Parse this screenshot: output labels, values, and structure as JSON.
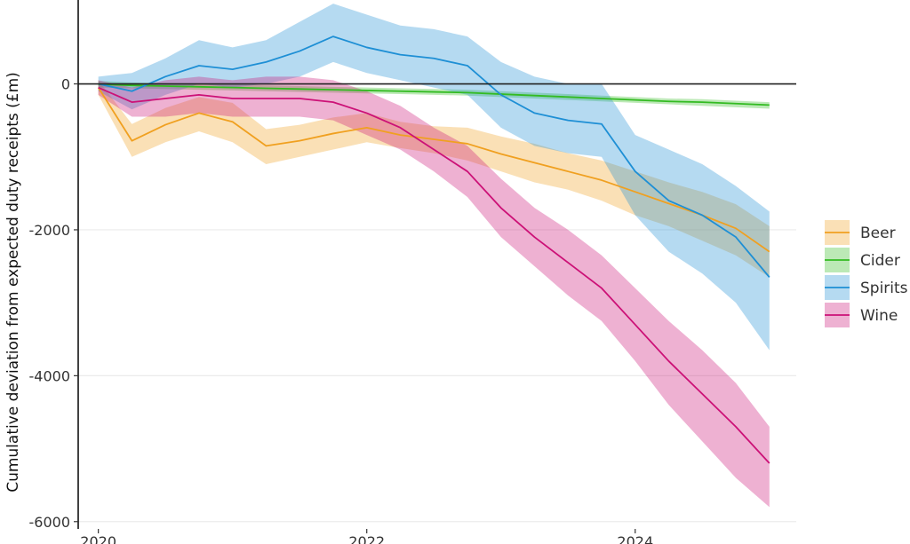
{
  "chart_data": {
    "type": "line",
    "title": "",
    "xlabel": "",
    "ylabel": "Cumulative deviation from expected duty receipts (£m)",
    "x_ticks": [
      "2020",
      "2022",
      "2024"
    ],
    "y_ticks": [
      "0",
      "-2000",
      "-4000",
      "-6000"
    ],
    "xlim": [
      2019.85,
      2025.2
    ],
    "ylim": [
      -6100,
      1150
    ],
    "grid": "horizontal",
    "legend_position": "right",
    "bands": "shaded confidence interval around each series",
    "x": [
      2020.0,
      2020.25,
      2020.5,
      2020.75,
      2021.0,
      2021.25,
      2021.5,
      2021.75,
      2022.0,
      2022.25,
      2022.5,
      2022.75,
      2023.0,
      2023.25,
      2023.5,
      2023.75,
      2024.0,
      2024.25,
      2024.5,
      2024.75,
      2025.0
    ],
    "series": [
      {
        "name": "Beer",
        "color": "#f0a020",
        "values": [
          -50,
          -780,
          -560,
          -400,
          -520,
          -850,
          -780,
          -680,
          -600,
          -700,
          -760,
          -820,
          -960,
          -1080,
          -1200,
          -1320,
          -1480,
          -1640,
          -1800,
          -1980,
          -2300
        ],
        "lower": [
          -150,
          -1000,
          -800,
          -650,
          -800,
          -1100,
          -1000,
          -900,
          -800,
          -880,
          -950,
          -1050,
          -1200,
          -1350,
          -1450,
          -1600,
          -1800,
          -1950,
          -2150,
          -2350,
          -2650
        ],
        "upper": [
          50,
          -550,
          -330,
          -180,
          -260,
          -620,
          -560,
          -460,
          -400,
          -520,
          -580,
          -600,
          -720,
          -820,
          -950,
          -1050,
          -1200,
          -1350,
          -1480,
          -1650,
          -1950
        ]
      },
      {
        "name": "Cider",
        "color": "#33bb22",
        "values": [
          -5,
          -20,
          -30,
          -40,
          -50,
          -60,
          -70,
          -80,
          -90,
          -100,
          -110,
          -120,
          -140,
          -160,
          -180,
          -200,
          -220,
          -240,
          -250,
          -270,
          -290
        ],
        "lower": [
          -50,
          -60,
          -70,
          -80,
          -90,
          -100,
          -110,
          -120,
          -130,
          -140,
          -150,
          -160,
          -180,
          -200,
          -220,
          -240,
          -260,
          -280,
          -300,
          -320,
          -340
        ],
        "upper": [
          40,
          20,
          10,
          0,
          -10,
          -20,
          -30,
          -40,
          -50,
          -60,
          -70,
          -80,
          -100,
          -120,
          -140,
          -160,
          -180,
          -200,
          -210,
          -230,
          -250
        ]
      },
      {
        "name": "Spirits",
        "color": "#1e8fd5",
        "values": [
          0,
          -100,
          100,
          250,
          200,
          300,
          450,
          650,
          500,
          400,
          350,
          250,
          -150,
          -400,
          -500,
          -550,
          -1200,
          -1600,
          -1800,
          -2100,
          -2650
        ],
        "lower": [
          -100,
          -350,
          -150,
          0,
          -50,
          0,
          100,
          300,
          150,
          50,
          -50,
          -150,
          -600,
          -850,
          -950,
          -1000,
          -1800,
          -2300,
          -2600,
          -3000,
          -3650
        ],
        "upper": [
          100,
          150,
          350,
          600,
          500,
          600,
          850,
          1100,
          950,
          800,
          750,
          650,
          300,
          100,
          0,
          0,
          -700,
          -900,
          -1100,
          -1400,
          -1750
        ]
      },
      {
        "name": "Wine",
        "color": "#cc1177",
        "values": [
          -50,
          -250,
          -200,
          -150,
          -200,
          -200,
          -200,
          -250,
          -400,
          -600,
          -900,
          -1200,
          -1700,
          -2100,
          -2450,
          -2800,
          -3300,
          -3800,
          -4250,
          -4700,
          -5200
        ],
        "lower": [
          -150,
          -450,
          -450,
          -400,
          -450,
          -450,
          -450,
          -500,
          -700,
          -900,
          -1200,
          -1550,
          -2100,
          -2500,
          -2900,
          -3250,
          -3800,
          -4400,
          -4900,
          -5400,
          -5800
        ],
        "upper": [
          50,
          -50,
          50,
          100,
          50,
          100,
          100,
          50,
          -100,
          -300,
          -600,
          -850,
          -1300,
          -1700,
          -2000,
          -2350,
          -2800,
          -3250,
          -3650,
          -4100,
          -4700
        ]
      }
    ]
  }
}
